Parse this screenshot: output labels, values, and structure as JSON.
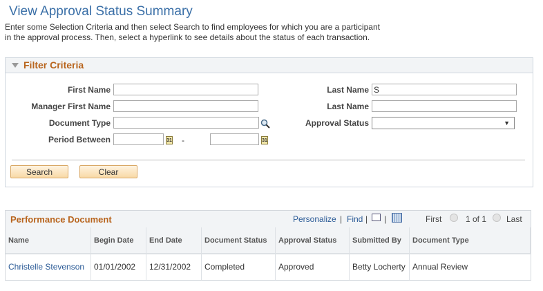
{
  "page": {
    "title": "View Approval Status Summary",
    "instructions": "Enter some Selection Criteria and then select Search to find employees for which you are a participant in the approval process. Then, select a hyperlink to see details about the status of each transaction."
  },
  "filter": {
    "title": "Filter Criteria",
    "first_name": {
      "label": "First Name",
      "value": ""
    },
    "manager_first_name": {
      "label": "Manager First Name",
      "value": ""
    },
    "document_type": {
      "label": "Document Type",
      "value": ""
    },
    "period_between": {
      "label": "Period Between",
      "from": "",
      "to": "",
      "separator": "-"
    },
    "last_name": {
      "label": "Last Name",
      "value": "S"
    },
    "manager_last_name": {
      "label": "Last Name",
      "value": ""
    },
    "approval_status": {
      "label": "Approval Status",
      "value": ""
    },
    "search_label": "Search",
    "clear_label": "Clear",
    "calendar_text": "31"
  },
  "grid": {
    "title": "Performance Document",
    "personalize": "Personalize",
    "find": "Find",
    "sep": "|",
    "first": "First",
    "page": "1 of 1",
    "last": "Last",
    "columns": [
      "Name",
      "Begin Date",
      "End Date",
      "Document Status",
      "Approval Status",
      "Submitted By",
      "Document Type"
    ],
    "rows": [
      [
        "Christelle Stevenson",
        "01/01/2002",
        "12/31/2002",
        "Completed",
        "Approved",
        "Betty Locherty",
        "Annual Review"
      ]
    ]
  }
}
